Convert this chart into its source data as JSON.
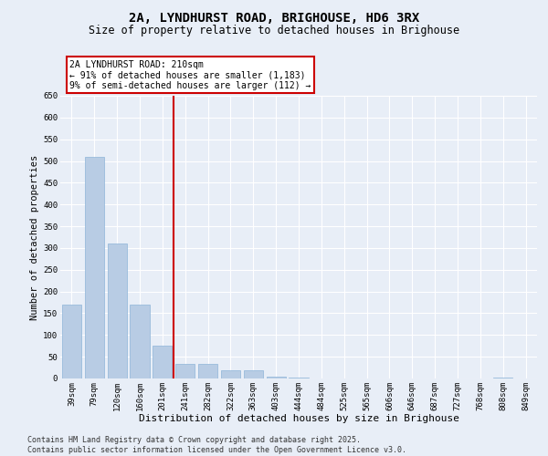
{
  "title": "2A, LYNDHURST ROAD, BRIGHOUSE, HD6 3RX",
  "subtitle": "Size of property relative to detached houses in Brighouse",
  "xlabel": "Distribution of detached houses by size in Brighouse",
  "ylabel": "Number of detached properties",
  "categories": [
    "39sqm",
    "79sqm",
    "120sqm",
    "160sqm",
    "201sqm",
    "241sqm",
    "282sqm",
    "322sqm",
    "363sqm",
    "403sqm",
    "444sqm",
    "484sqm",
    "525sqm",
    "565sqm",
    "606sqm",
    "646sqm",
    "687sqm",
    "727sqm",
    "768sqm",
    "808sqm",
    "849sqm"
  ],
  "values": [
    170,
    510,
    310,
    170,
    75,
    33,
    33,
    18,
    18,
    5,
    3,
    1,
    0,
    0,
    0,
    0,
    0,
    0,
    0,
    3,
    0
  ],
  "bar_color": "#b8cce4",
  "bar_edge_color": "#8db4d8",
  "vline_color": "#cc0000",
  "annotation_text": "2A LYNDHURST ROAD: 210sqm\n← 91% of detached houses are smaller (1,183)\n9% of semi-detached houses are larger (112) →",
  "annotation_box_color": "#cc0000",
  "ylim": [
    0,
    650
  ],
  "yticks": [
    0,
    50,
    100,
    150,
    200,
    250,
    300,
    350,
    400,
    450,
    500,
    550,
    600,
    650
  ],
  "background_color": "#e8eef7",
  "grid_color": "#ffffff",
  "footer_text": "Contains HM Land Registry data © Crown copyright and database right 2025.\nContains public sector information licensed under the Open Government Licence v3.0.",
  "title_fontsize": 10,
  "subtitle_fontsize": 8.5,
  "xlabel_fontsize": 8,
  "ylabel_fontsize": 7.5,
  "tick_fontsize": 6.5,
  "annotation_fontsize": 7,
  "footer_fontsize": 6
}
